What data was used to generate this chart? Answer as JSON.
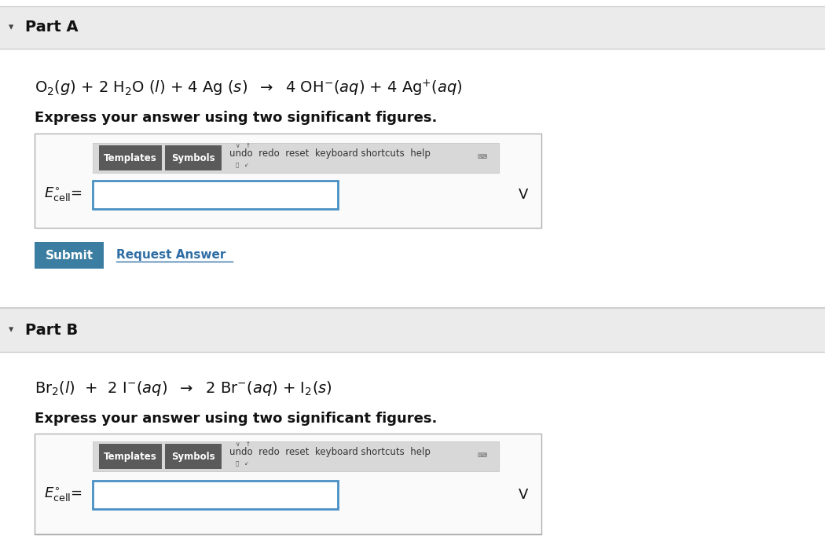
{
  "bg_top": "#f0f0f0",
  "bg_white": "#ffffff",
  "bg_section": "#f8f8f8",
  "part_header_bg": "#ebebeb",
  "separator_color": "#d0d0d0",
  "text_dark": "#111111",
  "arrow_color": "#444444",
  "part_a_label": "Part A",
  "part_b_label": "Part B",
  "eq_a": "O$_2$($g$) + 2 H$_2$O ($l$) + 4 Ag ($s$)  $\\rightarrow$  4 OH$^{-}$($aq$) + 4 Ag$^{+}$($aq$)",
  "eq_b": "Br$_2$($l$)  +  2 I$^{-}$($aq$)  $\\rightarrow$  2 Br$^{-}$($aq$) + I$_2$($s$)",
  "express_text": "Express your answer using two significant figures.",
  "ecell_label": "$E^{\\circ}_{\\mathrm{cell}}$=",
  "v_label": "V",
  "submit_text": "Submit",
  "request_text": "Request Answer",
  "submit_bg": "#3b7ea1",
  "request_color": "#2e6da4",
  "toolbar_bg": "#c8c8c8",
  "templates_bg": "#5a5a5a",
  "symbols_bg": "#5a5a5a",
  "input_border": "#4a90c4",
  "outer_box_border": "#b0b0b0",
  "outer_box_bg": "#fafafa",
  "toolbar_text_color": "#333333",
  "toolbar_pill_bg": "#d8d8d8",
  "toolbar_pill_border": "#c0c0c0"
}
